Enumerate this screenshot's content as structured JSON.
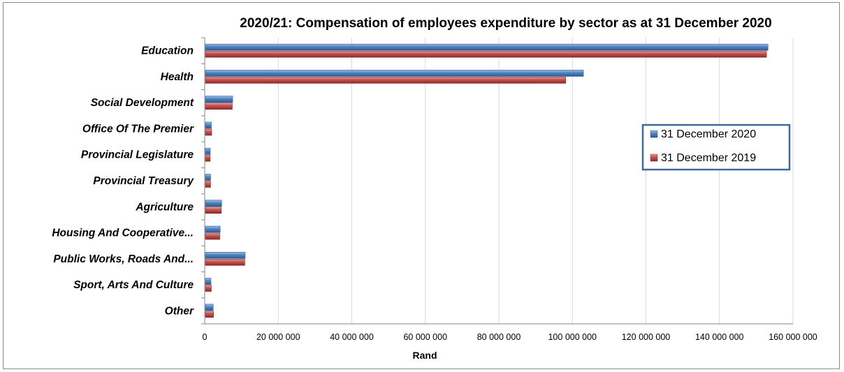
{
  "chart_data": {
    "type": "bar",
    "orientation": "horizontal",
    "title": "2020/21: Compensation of employees expenditure by sector as at 31 December 2020",
    "xlabel": "Rand",
    "ylabel": "",
    "xlim": [
      0,
      160000000
    ],
    "x_ticks": [
      "0",
      "20 000 000",
      "40 000 000",
      "60 000 000",
      "80 000 000",
      "100 000 000",
      "120 000 000",
      "140 000 000",
      "160 000 000"
    ],
    "categories": [
      "Education",
      "Health",
      "Social Development",
      "Office Of The Premier",
      "Provincial Legislature",
      "Provincial Treasury",
      "Agriculture",
      "Housing And Cooperative...",
      "Public Works, Roads And...",
      "Sport, Arts And Culture",
      "Other"
    ],
    "series": [
      {
        "name": "31 December 2020",
        "color": "#4f81bd",
        "values": [
          153200000,
          103000000,
          7600000,
          1800000,
          1500000,
          1600000,
          4600000,
          4200000,
          11000000,
          1700000,
          2300000
        ]
      },
      {
        "name": "31 December 2019",
        "color": "#c0504d",
        "values": [
          152800000,
          98200000,
          7500000,
          1900000,
          1500000,
          1600000,
          4500000,
          4100000,
          10900000,
          1800000,
          2400000
        ]
      }
    ],
    "grid": true,
    "legend_position": "right"
  }
}
